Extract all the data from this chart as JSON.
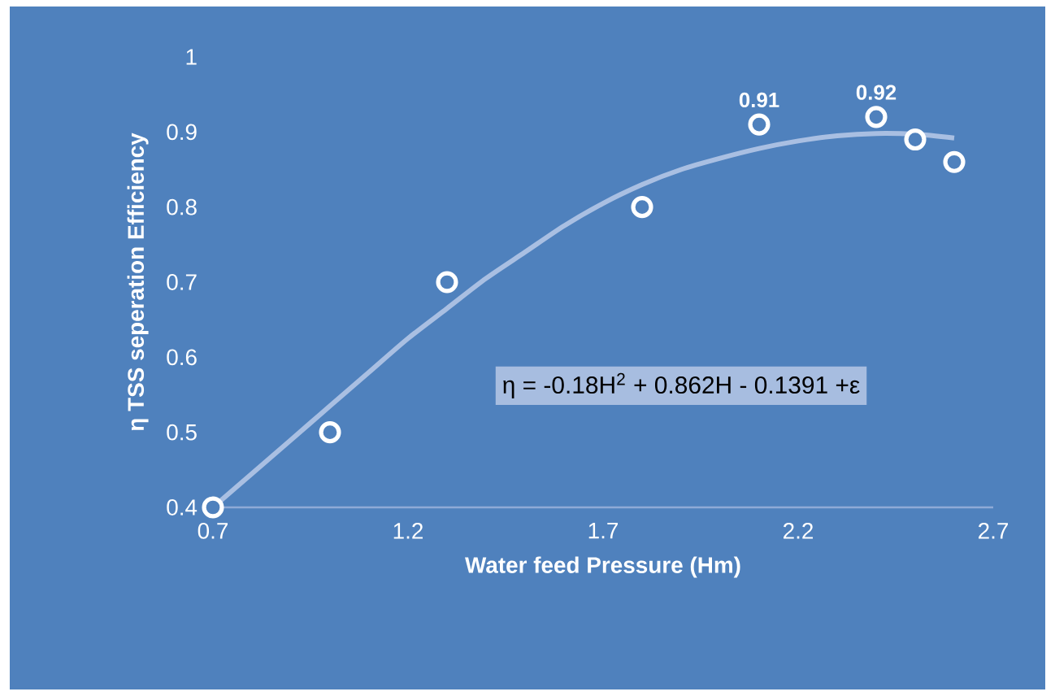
{
  "chart_data": {
    "type": "scatter",
    "xlabel": "Water feed Pressure (Hm)",
    "ylabel": "η TSS seperation Efficiency",
    "annotations": [
      "η = -0.18H$^{2}$ + 0.862H - 0.1391 +ε"
    ],
    "xlim": [
      0.7,
      2.7
    ],
    "xticks": [
      0.7,
      1.2,
      1.7,
      2.2,
      2.7
    ],
    "ylim": [
      0.4,
      1
    ],
    "yticks": [
      0.4,
      0.5,
      0.6,
      0.7,
      0.8,
      0.9,
      1
    ],
    "grid": false,
    "series": [
      {
        "type": "line",
        "color": "#a9bfe2",
        "x": [
          0.7,
          0.8,
          0.9,
          1.0,
          1.1,
          1.2,
          1.3,
          1.4,
          1.5,
          1.6,
          1.7,
          1.8,
          1.9,
          2.0,
          2.1,
          2.2,
          2.3,
          2.4,
          2.5,
          2.6
        ],
        "values": [
          0.4,
          0.445,
          0.49,
          0.535,
          0.58,
          0.625,
          0.665,
          0.705,
          0.74,
          0.775,
          0.805,
          0.83,
          0.85,
          0.865,
          0.878,
          0.888,
          0.895,
          0.898,
          0.897,
          0.892
        ]
      },
      {
        "color": "#ffffff",
        "marker": "circle",
        "x": [
          0.7,
          1.0,
          1.3,
          1.8,
          2.1,
          2.4,
          2.5,
          2.6
        ],
        "values": [
          0.4,
          0.5,
          0.7,
          0.8,
          0.91,
          0.92,
          0.89,
          0.86
        ],
        "value_labels": [
          null,
          null,
          null,
          null,
          "0.91",
          "0.92",
          null,
          null
        ]
      }
    ]
  }
}
